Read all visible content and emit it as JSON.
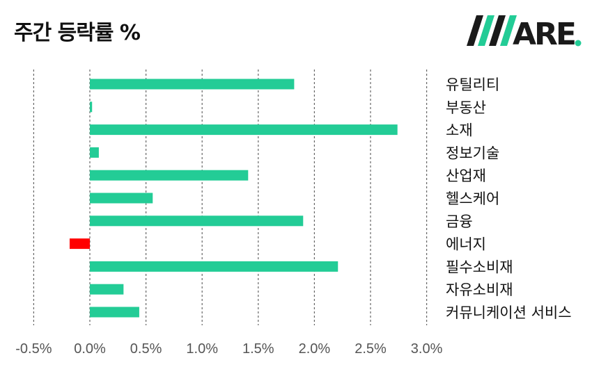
{
  "title": "주간 등락률 %",
  "logo": {
    "text_main": "AWARE",
    "text_dot": ".",
    "accent_color": "#23cc96"
  },
  "colors": {
    "positive": "#23cc96",
    "negative": "#ff0000",
    "grid": "#666666"
  },
  "chart_data": {
    "type": "bar",
    "orientation": "horizontal",
    "title": "주간 등락률 %",
    "xlabel": "",
    "ylabel": "",
    "categories": [
      "유틸리티",
      "부동산",
      "소재",
      "정보기술",
      "산업재",
      "헬스케어",
      "금융",
      "에너지",
      "필수소비재",
      "자유소비재",
      "커뮤니케이션 서비스"
    ],
    "values": [
      1.82,
      0.02,
      2.74,
      0.08,
      1.41,
      0.56,
      1.9,
      -0.18,
      2.21,
      0.3,
      0.44
    ],
    "xlim": [
      -0.5,
      3.0
    ],
    "xticks": [
      -0.5,
      0.0,
      0.5,
      1.0,
      1.5,
      2.0,
      2.5,
      3.0
    ],
    "xtick_labels": [
      "-0.5%",
      "0.0%",
      "0.5%",
      "1.0%",
      "1.5%",
      "2.0%",
      "2.5%",
      "3.0%"
    ],
    "grid": "vertical dashed"
  }
}
